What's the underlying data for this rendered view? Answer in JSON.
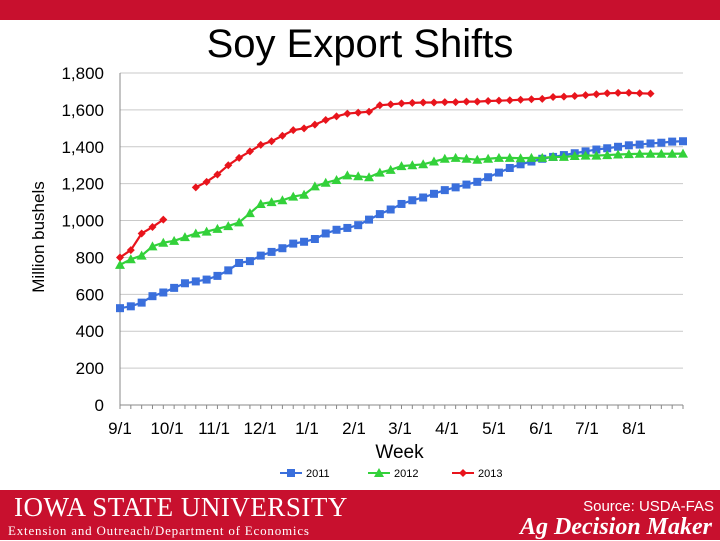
{
  "title": "Soy Export Shifts",
  "colors": {
    "s2011": "#3a6fdc",
    "s2012": "#33d13a",
    "s2013": "#e8141c",
    "brand": "#c8102e"
  },
  "footer": {
    "university": "IOWA STATE UNIVERSITY",
    "department": "Extension and Outreach/Department of Economics",
    "source": "Source: USDA-FAS",
    "brand": "Ag Decision Maker"
  },
  "chart_data": {
    "type": "line",
    "xlabel": "Week",
    "ylabel": "Million bushels",
    "ylim": [
      0,
      1800
    ],
    "yticks": [
      0,
      200,
      400,
      600,
      800,
      1000,
      1200,
      1400,
      1600,
      1800
    ],
    "xticks": [
      "9/1",
      "10/1",
      "11/1",
      "12/1",
      "1/1",
      "2/1",
      "3/1",
      "4/1",
      "5/1",
      "6/1",
      "7/1",
      "8/1"
    ],
    "grid": true,
    "legend": "bottom",
    "series": [
      {
        "name": "2011",
        "marker": "square",
        "points": [
          [
            0,
            525
          ],
          [
            1,
            535
          ],
          [
            2,
            555
          ],
          [
            3,
            590
          ],
          [
            4,
            610
          ],
          [
            5,
            635
          ],
          [
            6,
            660
          ],
          [
            7,
            670
          ],
          [
            8,
            680
          ],
          [
            9,
            700
          ],
          [
            10,
            730
          ],
          [
            11,
            770
          ],
          [
            12,
            780
          ],
          [
            13,
            810
          ],
          [
            14,
            830
          ],
          [
            15,
            850
          ],
          [
            16,
            875
          ],
          [
            17,
            885
          ],
          [
            18,
            900
          ],
          [
            19,
            930
          ],
          [
            20,
            950
          ],
          [
            21,
            960
          ],
          [
            22,
            975
          ],
          [
            23,
            1005
          ],
          [
            24,
            1035
          ],
          [
            25,
            1060
          ],
          [
            26,
            1090
          ],
          [
            27,
            1110
          ],
          [
            28,
            1125
          ],
          [
            29,
            1145
          ],
          [
            30,
            1165
          ],
          [
            31,
            1180
          ],
          [
            32,
            1195
          ],
          [
            33,
            1210
          ],
          [
            34,
            1235
          ],
          [
            35,
            1260
          ],
          [
            36,
            1285
          ],
          [
            37,
            1305
          ],
          [
            38,
            1320
          ],
          [
            39,
            1335
          ],
          [
            40,
            1345
          ],
          [
            41,
            1355
          ],
          [
            42,
            1365
          ],
          [
            43,
            1375
          ],
          [
            44,
            1385
          ],
          [
            45,
            1392
          ],
          [
            46,
            1400
          ],
          [
            47,
            1408
          ],
          [
            48,
            1412
          ],
          [
            49,
            1418
          ],
          [
            50,
            1422
          ],
          [
            51,
            1428
          ],
          [
            52,
            1430
          ]
        ]
      },
      {
        "name": "2012",
        "marker": "triangle",
        "points": [
          [
            0,
            760
          ],
          [
            1,
            790
          ],
          [
            2,
            810
          ],
          [
            3,
            860
          ],
          [
            4,
            880
          ],
          [
            5,
            890
          ],
          [
            6,
            910
          ],
          [
            7,
            930
          ],
          [
            8,
            940
          ],
          [
            9,
            955
          ],
          [
            10,
            970
          ],
          [
            11,
            990
          ],
          [
            12,
            1040
          ],
          [
            13,
            1090
          ],
          [
            14,
            1100
          ],
          [
            15,
            1110
          ],
          [
            16,
            1130
          ],
          [
            17,
            1140
          ],
          [
            18,
            1185
          ],
          [
            19,
            1205
          ],
          [
            20,
            1220
          ],
          [
            21,
            1245
          ],
          [
            22,
            1240
          ],
          [
            23,
            1235
          ],
          [
            24,
            1260
          ],
          [
            25,
            1275
          ],
          [
            26,
            1295
          ],
          [
            27,
            1300
          ],
          [
            28,
            1305
          ],
          [
            29,
            1320
          ],
          [
            30,
            1335
          ],
          [
            31,
            1340
          ],
          [
            32,
            1335
          ],
          [
            33,
            1330
          ],
          [
            34,
            1335
          ],
          [
            35,
            1340
          ],
          [
            36,
            1340
          ],
          [
            37,
            1338
          ],
          [
            38,
            1340
          ],
          [
            39,
            1340
          ],
          [
            40,
            1345
          ],
          [
            41,
            1345
          ],
          [
            42,
            1350
          ],
          [
            43,
            1352
          ],
          [
            44,
            1352
          ],
          [
            45,
            1355
          ],
          [
            46,
            1358
          ],
          [
            47,
            1360
          ],
          [
            48,
            1362
          ],
          [
            49,
            1362
          ],
          [
            50,
            1362
          ],
          [
            51,
            1362
          ],
          [
            52,
            1363
          ]
        ]
      },
      {
        "name": "2013",
        "marker": "diamond",
        "segments": [
          [
            [
              0,
              800
            ],
            [
              1,
              840
            ],
            [
              2,
              930
            ],
            [
              3,
              965
            ],
            [
              4,
              1005
            ]
          ],
          [
            [
              7,
              1180
            ],
            [
              8,
              1210
            ],
            [
              9,
              1250
            ],
            [
              10,
              1300
            ],
            [
              11,
              1340
            ],
            [
              12,
              1375
            ],
            [
              13,
              1410
            ],
            [
              14,
              1430
            ],
            [
              15,
              1460
            ],
            [
              16,
              1490
            ],
            [
              17,
              1500
            ],
            [
              18,
              1520
            ],
            [
              19,
              1545
            ],
            [
              20,
              1565
            ],
            [
              21,
              1580
            ],
            [
              22,
              1585
            ],
            [
              23,
              1590
            ],
            [
              24,
              1625
            ],
            [
              25,
              1630
            ],
            [
              26,
              1635
            ],
            [
              27,
              1638
            ],
            [
              28,
              1640
            ],
            [
              29,
              1640
            ],
            [
              30,
              1642
            ],
            [
              31,
              1642
            ],
            [
              32,
              1645
            ],
            [
              33,
              1645
            ],
            [
              34,
              1648
            ],
            [
              35,
              1650
            ],
            [
              36,
              1652
            ],
            [
              37,
              1655
            ],
            [
              38,
              1658
            ],
            [
              39,
              1660
            ],
            [
              40,
              1670
            ],
            [
              41,
              1672
            ],
            [
              42,
              1675
            ],
            [
              43,
              1680
            ],
            [
              44,
              1685
            ],
            [
              45,
              1690
            ],
            [
              46,
              1692
            ],
            [
              47,
              1693
            ],
            [
              48,
              1690
            ],
            [
              49,
              1688
            ]
          ]
        ]
      }
    ]
  }
}
